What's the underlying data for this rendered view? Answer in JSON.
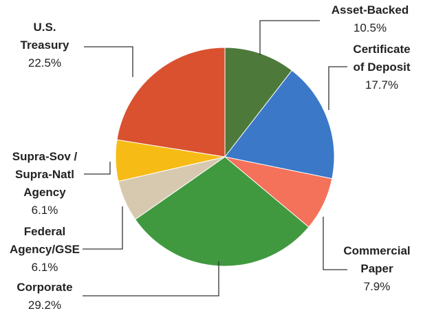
{
  "chart_data": {
    "type": "pie",
    "categories": [
      "Asset-Backed",
      "Certificate\nof Deposit",
      "Commercial\nPaper",
      "Corporate",
      "Federal\nAgency/GSE",
      "Supra-Sov /\nSupra-Natl\nAgency",
      "U.S.\nTreasury"
    ],
    "values": [
      10.5,
      17.7,
      7.9,
      29.2,
      6.1,
      6.1,
      22.5
    ],
    "value_labels": [
      "10.5%",
      "17.7%",
      "7.9%",
      "29.2%",
      "6.1%",
      "6.1%",
      "22.5%"
    ],
    "colors": [
      "#4d7a3a",
      "#3b78c8",
      "#f4715a",
      "#40993f",
      "#d7c9b0",
      "#f7bb16",
      "#d9512f"
    ]
  }
}
